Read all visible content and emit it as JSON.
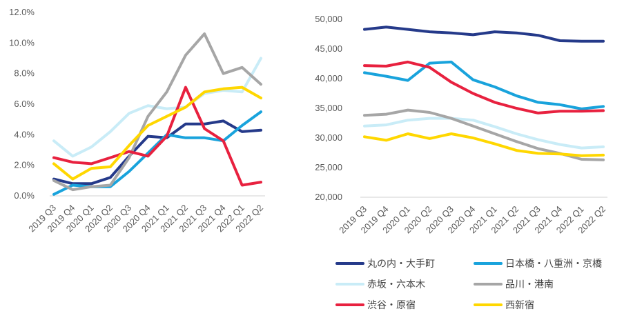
{
  "chart_data": [
    {
      "type": "line",
      "categories": [
        "2019 Q3",
        "2019 Q4",
        "2020 Q1",
        "2020 Q2",
        "2020 Q3",
        "2020 Q4",
        "2021 Q1",
        "2021 Q2",
        "2021 Q3",
        "2021 Q4",
        "2022 Q1",
        "2022 Q2"
      ],
      "ylim": [
        0,
        12
      ],
      "yticks": [
        "0.0%",
        "2.0%",
        "4.0%",
        "6.0%",
        "8.0%",
        "10.0%",
        "12.0%"
      ],
      "grid": false,
      "series": [
        {
          "name": "丸の内・大手町",
          "color": "#253A8A",
          "values": [
            1.1,
            0.8,
            0.8,
            1.2,
            2.6,
            3.9,
            3.8,
            4.7,
            4.7,
            4.9,
            4.2,
            4.3
          ]
        },
        {
          "name": "日本橋・八重洲・京橋",
          "color": "#19A3DC",
          "values": [
            0.1,
            0.7,
            0.6,
            0.6,
            1.6,
            2.8,
            4.0,
            3.8,
            3.8,
            3.6,
            4.6,
            5.5
          ]
        },
        {
          "name": "赤坂・六本木",
          "color": "#C9ECF7",
          "values": [
            3.6,
            2.6,
            3.2,
            4.2,
            5.4,
            5.9,
            5.7,
            5.8,
            6.7,
            6.9,
            6.8,
            9.0
          ]
        },
        {
          "name": "品川・港南",
          "color": "#A6A6A6",
          "values": [
            1.0,
            0.4,
            0.6,
            0.7,
            2.5,
            5.2,
            6.8,
            9.2,
            10.6,
            8.0,
            8.4,
            7.3
          ]
        },
        {
          "name": "渋谷・原宿",
          "color": "#E8213F",
          "values": [
            2.5,
            2.2,
            2.1,
            2.5,
            2.9,
            2.6,
            3.9,
            7.1,
            4.4,
            3.6,
            0.7,
            0.9
          ]
        },
        {
          "name": "西新宿",
          "color": "#FFD700",
          "values": [
            2.1,
            1.1,
            1.8,
            1.9,
            3.3,
            4.6,
            5.2,
            5.8,
            6.8,
            7.0,
            7.1,
            6.4
          ]
        }
      ]
    },
    {
      "type": "line",
      "categories": [
        "2019 Q3",
        "2019 Q4",
        "2020 Q1",
        "2020 Q2",
        "2020 Q3",
        "2020 Q4",
        "2021 Q1",
        "2021 Q2",
        "2021 Q3",
        "2021 Q4",
        "2022 Q1",
        "2022 Q2"
      ],
      "ylim": [
        20000,
        50000
      ],
      "yticks": [
        "20,000",
        "25,000",
        "30,000",
        "35,000",
        "40,000",
        "45,000",
        "50,000"
      ],
      "grid": false,
      "legend_position": "bottom",
      "series": [
        {
          "name": "丸の内・大手町",
          "color": "#253A8A",
          "values": [
            48300,
            48700,
            48300,
            47900,
            47700,
            47400,
            47900,
            47700,
            47300,
            46400,
            46300,
            46300
          ]
        },
        {
          "name": "日本橋・八重洲・京橋",
          "color": "#19A3DC",
          "values": [
            41000,
            40400,
            39700,
            42600,
            42800,
            39800,
            38600,
            37100,
            36000,
            35600,
            34900,
            35300
          ]
        },
        {
          "name": "赤坂・六本木",
          "color": "#C9ECF7",
          "values": [
            32000,
            32200,
            33000,
            33300,
            33300,
            33000,
            31900,
            30700,
            29700,
            28900,
            28300,
            28500
          ]
        },
        {
          "name": "品川・港南",
          "color": "#A6A6A6",
          "values": [
            33800,
            34000,
            34700,
            34300,
            33300,
            32000,
            30700,
            29400,
            28200,
            27400,
            26400,
            26300
          ]
        },
        {
          "name": "渋谷・原宿",
          "color": "#E8213F",
          "values": [
            42200,
            42100,
            42800,
            41900,
            39400,
            37500,
            36000,
            35000,
            34200,
            34500,
            34500,
            34600
          ]
        },
        {
          "name": "西新宿",
          "color": "#FFD700",
          "values": [
            30200,
            29600,
            30700,
            29900,
            30700,
            30000,
            29000,
            27900,
            27400,
            27300,
            27000,
            27100
          ]
        }
      ]
    }
  ]
}
